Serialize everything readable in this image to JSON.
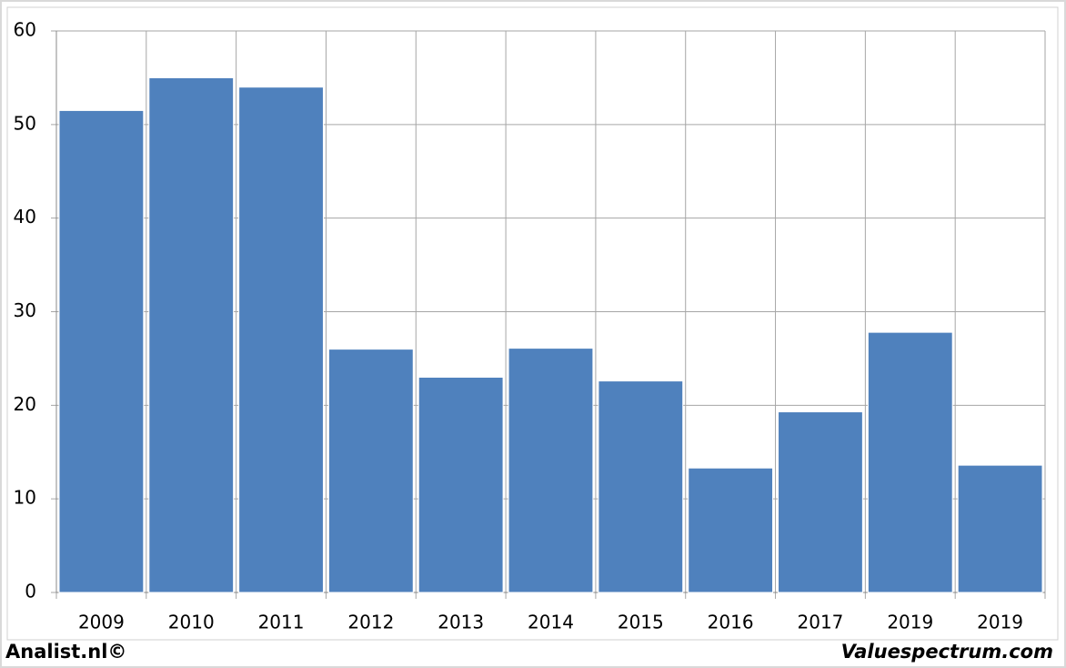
{
  "chart_data": {
    "type": "bar",
    "categories": [
      "2009",
      "2010",
      "2011",
      "2012",
      "2013",
      "2014",
      "2015",
      "2016",
      "2017",
      "2019",
      "2019"
    ],
    "values": [
      51.5,
      55,
      54,
      26,
      23,
      26.1,
      22.6,
      13.3,
      19.3,
      27.8,
      13.6
    ],
    "color": "#4f81bd",
    "ylim": [
      0,
      60
    ],
    "yticks": [
      0,
      10,
      20,
      30,
      40,
      50,
      60
    ],
    "grid": true
  },
  "footer": {
    "left": "Analist.nl©",
    "right": "Valuespectrum.com"
  }
}
